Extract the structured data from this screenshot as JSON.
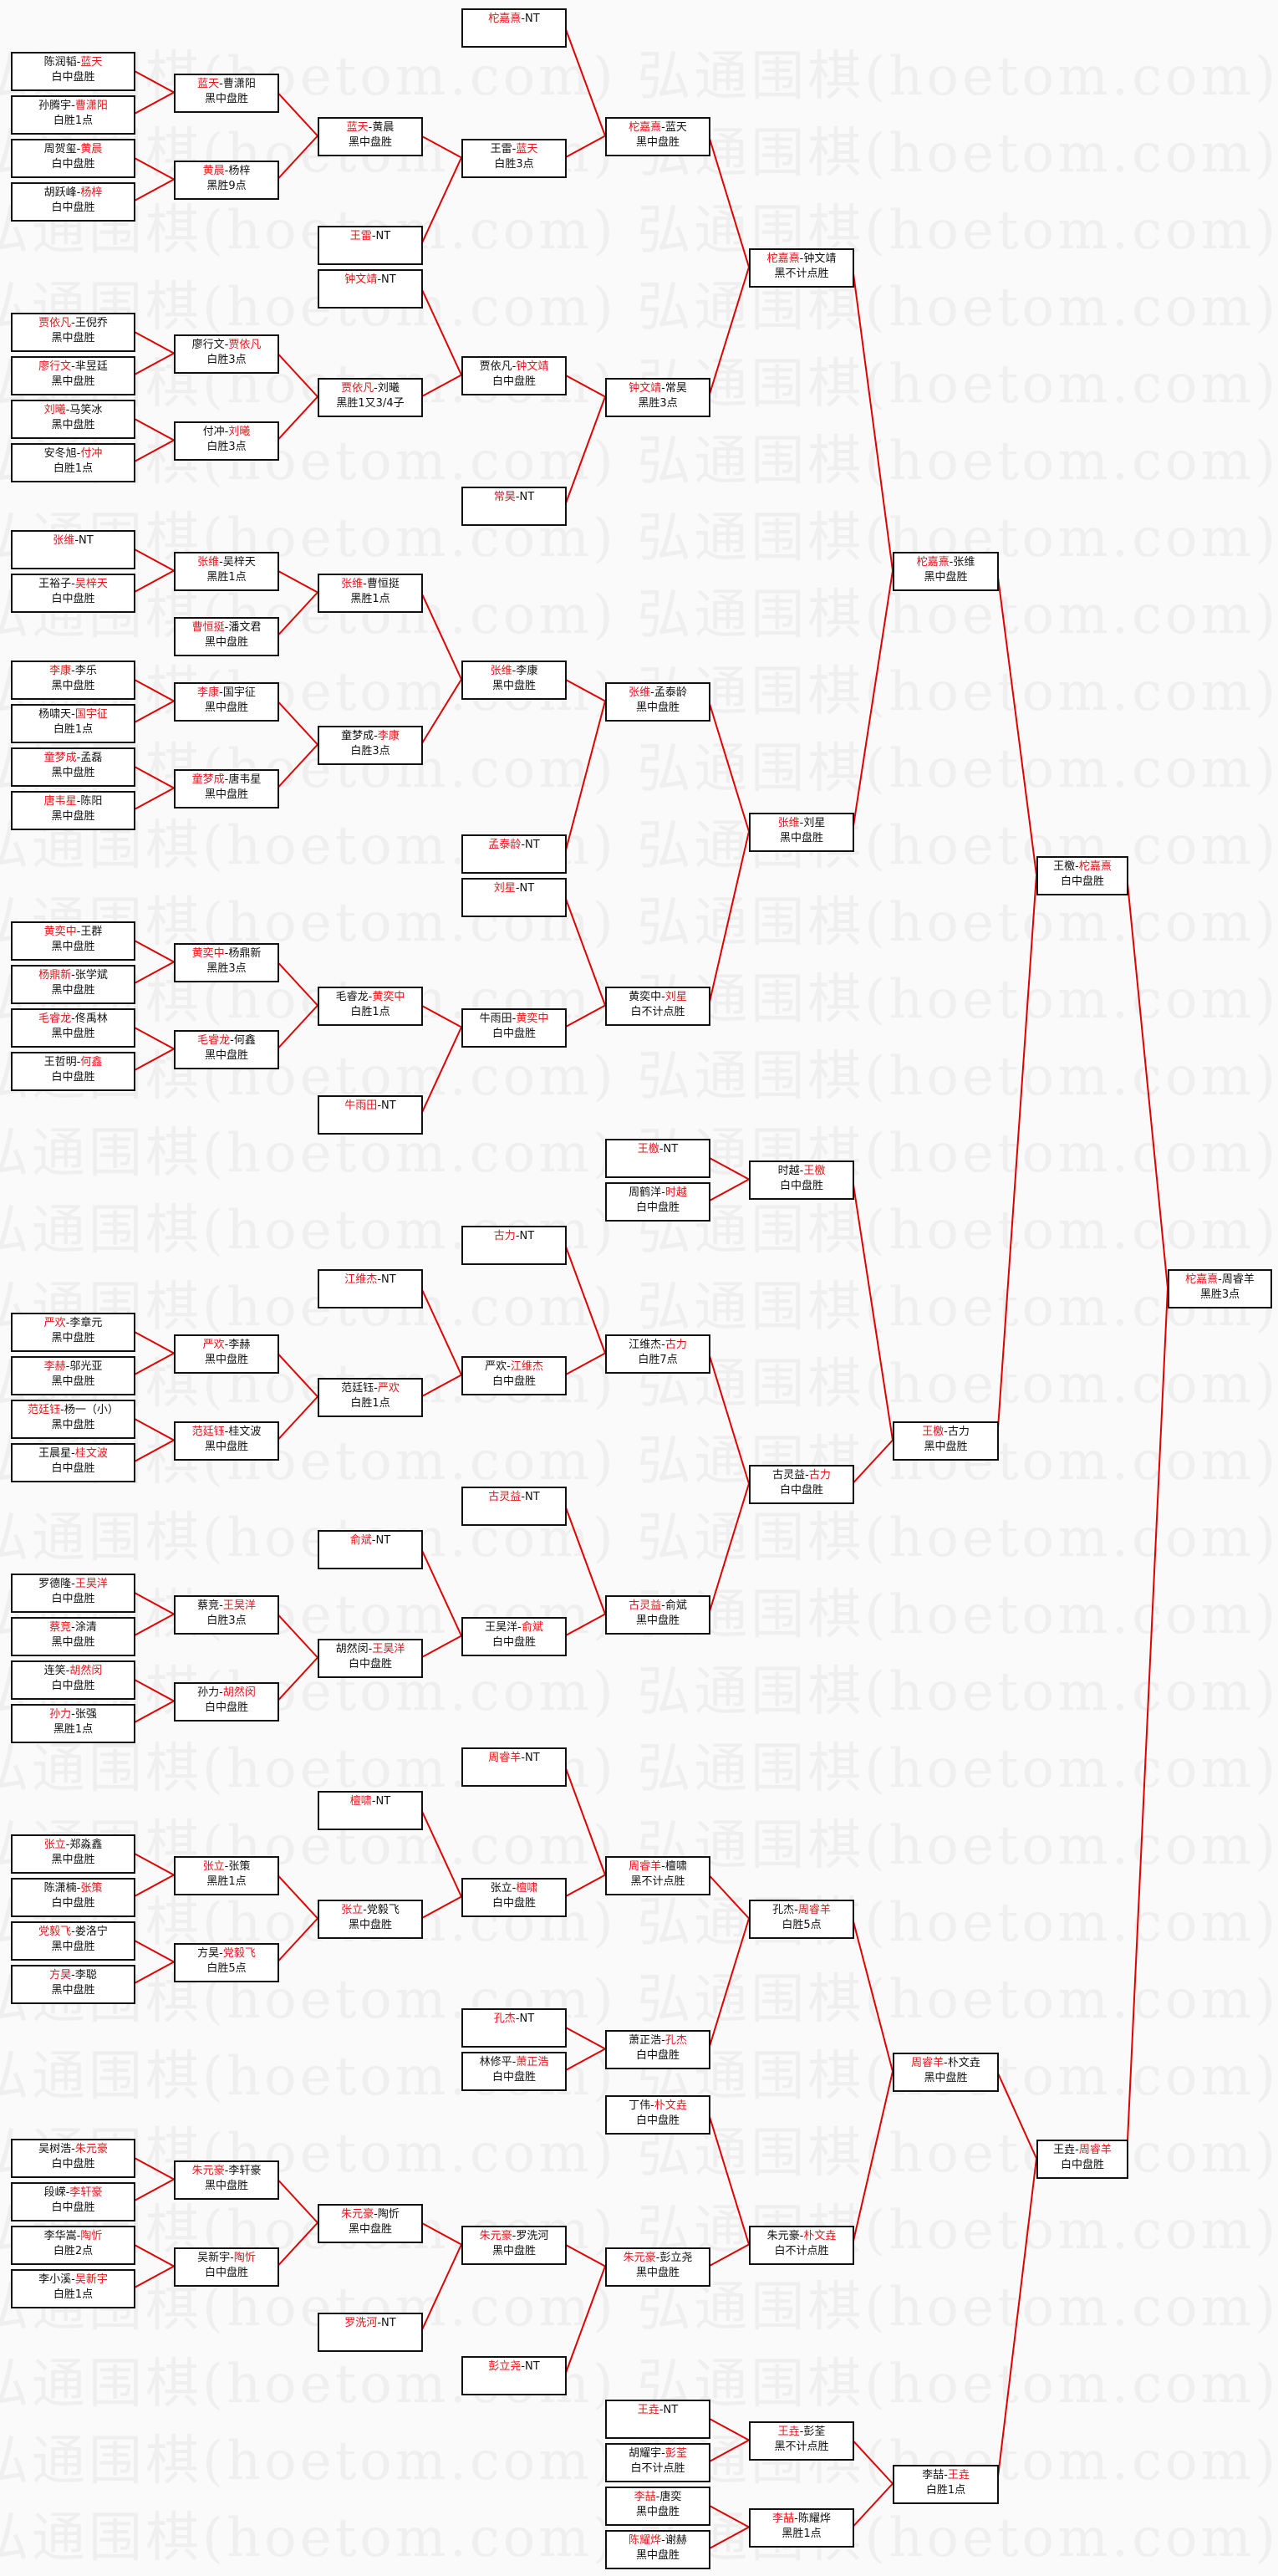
{
  "watermark": "弘通围棋(hoetom.com)",
  "colors": {
    "winner": "#e8141c",
    "connector": "#e00000",
    "box_border": "#111111",
    "watermark": "#efefef"
  },
  "bye_label": "NT",
  "rounds": [
    [
      {
        "a": "陈润韬",
        "b": "蓝天",
        "w": 2,
        "r": "白中盘胜"
      },
      {
        "a": "孙腾宇",
        "b": "曹潇阳",
        "w": 2,
        "r": "白胜1点"
      },
      {
        "a": "周贺玺",
        "b": "黄晨",
        "w": 2,
        "r": "白中盘胜"
      },
      {
        "a": "胡跃峰",
        "b": "杨梓",
        "w": 2,
        "r": "白中盘胜"
      },
      {
        "a": "贾依凡",
        "b": "王倪乔",
        "w": 1,
        "r": "黑中盘胜"
      },
      {
        "a": "廖行文",
        "b": "芈昱廷",
        "w": 1,
        "r": "黑中盘胜"
      },
      {
        "a": "刘曦",
        "b": "马笑冰",
        "w": 1,
        "r": "黑中盘胜"
      },
      {
        "a": "安冬旭",
        "b": "付冲",
        "w": 2,
        "r": "白胜1点"
      },
      {
        "a": "张维",
        "b": "NT",
        "w": 1,
        "r": ""
      },
      {
        "a": "王裕子",
        "b": "吴梓天",
        "w": 2,
        "r": "白中盘胜"
      },
      {
        "a": "李康",
        "b": "李乐",
        "w": 1,
        "r": "黑中盘胜"
      },
      {
        "a": "杨啸天",
        "b": "国宇征",
        "w": 2,
        "r": "白胜1点"
      },
      {
        "a": "童梦成",
        "b": "孟磊",
        "w": 1,
        "r": "黑中盘胜"
      },
      {
        "a": "唐韦星",
        "b": "陈阳",
        "w": 1,
        "r": "黑中盘胜"
      },
      {
        "a": "黄奕中",
        "b": "王群",
        "w": 1,
        "r": "黑中盘胜"
      },
      {
        "a": "杨鼎新",
        "b": "张学斌",
        "w": 1,
        "r": "黑中盘胜"
      },
      {
        "a": "毛睿龙",
        "b": "佟禹林",
        "w": 1,
        "r": "黑中盘胜"
      },
      {
        "a": "王哲明",
        "b": "何鑫",
        "w": 2,
        "r": "白中盘胜"
      },
      {
        "a": "严欢",
        "b": "李章元",
        "w": 1,
        "r": "黑中盘胜"
      },
      {
        "a": "李赫",
        "b": "邬光亚",
        "w": 1,
        "r": "黑中盘胜"
      },
      {
        "a": "范廷钰",
        "b": "杨一（小）",
        "w": 1,
        "r": "黑中盘胜"
      },
      {
        "a": "王晨星",
        "b": "桂文波",
        "w": 2,
        "r": "白中盘胜"
      },
      {
        "a": "罗德隆",
        "b": "王昊洋",
        "w": 2,
        "r": "白中盘胜"
      },
      {
        "a": "蔡竞",
        "b": "涂清",
        "w": 1,
        "r": "黑中盘胜"
      },
      {
        "a": "连笑",
        "b": "胡然闵",
        "w": 2,
        "r": "白中盘胜"
      },
      {
        "a": "孙力",
        "b": "张强",
        "w": 1,
        "r": "黑胜1点"
      },
      {
        "a": "张立",
        "b": "郑淼鑫",
        "w": 1,
        "r": "黑中盘胜"
      },
      {
        "a": "陈潇楠",
        "b": "张策",
        "w": 2,
        "r": "白中盘胜"
      },
      {
        "a": "党毅飞",
        "b": "娄洛宁",
        "w": 1,
        "r": "黑中盘胜"
      },
      {
        "a": "方昊",
        "b": "李聪",
        "w": 1,
        "r": "黑中盘胜"
      },
      {
        "a": "吴树浩",
        "b": "朱元豪",
        "w": 2,
        "r": "白中盘胜"
      },
      {
        "a": "段嵘",
        "b": "李轩豪",
        "w": 2,
        "r": "白中盘胜"
      },
      {
        "a": "李华嵩",
        "b": "陶忻",
        "w": 2,
        "r": "白胜2点"
      },
      {
        "a": "李小溪",
        "b": "吴新宇",
        "w": 2,
        "r": "白胜1点"
      }
    ],
    [
      {
        "a": "蓝天",
        "b": "曹潇阳",
        "w": 1,
        "r": "黑中盘胜"
      },
      {
        "a": "黄晨",
        "b": "杨梓",
        "w": 1,
        "r": "黑胜9点"
      },
      {
        "a": "廖行文",
        "b": "贾依凡",
        "w": 2,
        "r": "白胜3点"
      },
      {
        "a": "付冲",
        "b": "刘曦",
        "w": 2,
        "r": "白胜3点"
      },
      {
        "a": "张维",
        "b": "吴梓天",
        "w": 1,
        "r": "黑胜1点"
      },
      {
        "a": "曹恒挺",
        "b": "潘文君",
        "w": 1,
        "r": "黑中盘胜"
      },
      {
        "a": "李康",
        "b": "国宇征",
        "w": 1,
        "r": "黑中盘胜"
      },
      {
        "a": "童梦成",
        "b": "唐韦星",
        "w": 1,
        "r": "黑中盘胜"
      },
      {
        "a": "黄奕中",
        "b": "杨鼎新",
        "w": 1,
        "r": "黑胜3点"
      },
      {
        "a": "毛睿龙",
        "b": "何鑫",
        "w": 1,
        "r": "黑中盘胜"
      },
      {
        "a": "严欢",
        "b": "李赫",
        "w": 1,
        "r": "黑中盘胜"
      },
      {
        "a": "范廷钰",
        "b": "桂文波",
        "w": 1,
        "r": "黑中盘胜"
      },
      {
        "a": "蔡竞",
        "b": "王昊洋",
        "w": 2,
        "r": "白胜3点"
      },
      {
        "a": "孙力",
        "b": "胡然闵",
        "w": 2,
        "r": "白中盘胜"
      },
      {
        "a": "张立",
        "b": "张策",
        "w": 1,
        "r": "黑胜1点"
      },
      {
        "a": "方昊",
        "b": "党毅飞",
        "w": 2,
        "r": "白胜5点"
      },
      {
        "a": "朱元豪",
        "b": "李轩豪",
        "w": 1,
        "r": "黑中盘胜"
      },
      {
        "a": "吴新宇",
        "b": "陶忻",
        "w": 2,
        "r": "白中盘胜"
      }
    ],
    [
      {
        "a": "蓝天",
        "b": "黄晨",
        "w": 1,
        "r": "黑中盘胜"
      },
      {
        "a": "王雷",
        "b": "NT",
        "w": 1,
        "r": ""
      },
      {
        "a": "钟文靖",
        "b": "NT",
        "w": 1,
        "r": ""
      },
      {
        "a": "贾依凡",
        "b": "刘曦",
        "w": 1,
        "r": "黑胜1又3/4子"
      },
      {
        "a": "张维",
        "b": "曹恒挺",
        "w": 1,
        "r": "黑胜1点"
      },
      {
        "a": "童梦成",
        "b": "李康",
        "w": 2,
        "r": "白胜3点"
      },
      {
        "a": "毛睿龙",
        "b": "黄奕中",
        "w": 2,
        "r": "白胜1点"
      },
      {
        "a": "牛雨田",
        "b": "NT",
        "w": 1,
        "r": ""
      },
      {
        "a": "江维杰",
        "b": "NT",
        "w": 1,
        "r": ""
      },
      {
        "a": "范廷钰",
        "b": "严欢",
        "w": 2,
        "r": "白胜1点"
      },
      {
        "a": "俞斌",
        "b": "NT",
        "w": 1,
        "r": ""
      },
      {
        "a": "胡然闵",
        "b": "王昊洋",
        "w": 2,
        "r": "白中盘胜"
      },
      {
        "a": "檀啸",
        "b": "NT",
        "w": 1,
        "r": ""
      },
      {
        "a": "张立",
        "b": "党毅飞",
        "w": 1,
        "r": "黑中盘胜"
      },
      {
        "a": "朱元豪",
        "b": "陶忻",
        "w": 1,
        "r": "黑中盘胜"
      },
      {
        "a": "罗洗河",
        "b": "NT",
        "w": 1,
        "r": ""
      }
    ],
    [
      {
        "a": "柁嘉熹",
        "b": "NT",
        "w": 1,
        "r": ""
      },
      {
        "a": "王雷",
        "b": "蓝天",
        "w": 2,
        "r": "白胜3点"
      },
      {
        "a": "贾依凡",
        "b": "钟文靖",
        "w": 2,
        "r": "白中盘胜"
      },
      {
        "a": "常昊",
        "b": "NT",
        "w": 1,
        "r": ""
      },
      {
        "a": "张维",
        "b": "李康",
        "w": 1,
        "r": "黑中盘胜"
      },
      {
        "a": "孟泰龄",
        "b": "NT",
        "w": 1,
        "r": ""
      },
      {
        "a": "刘星",
        "b": "NT",
        "w": 1,
        "r": ""
      },
      {
        "a": "牛雨田",
        "b": "黄奕中",
        "w": 2,
        "r": "白中盘胜"
      },
      {
        "a": "古力",
        "b": "NT",
        "w": 1,
        "r": ""
      },
      {
        "a": "严欢",
        "b": "江维杰",
        "w": 2,
        "r": "白中盘胜"
      },
      {
        "a": "古灵益",
        "b": "NT",
        "w": 1,
        "r": ""
      },
      {
        "a": "王昊洋",
        "b": "俞斌",
        "w": 2,
        "r": "白中盘胜"
      },
      {
        "a": "周睿羊",
        "b": "NT",
        "w": 1,
        "r": ""
      },
      {
        "a": "张立",
        "b": "檀啸",
        "w": 2,
        "r": "白中盘胜"
      },
      {
        "a": "孔杰",
        "b": "NT",
        "w": 1,
        "r": ""
      },
      {
        "a": "林修平",
        "b": "萧正浩",
        "w": 2,
        "r": "白中盘胜"
      },
      {
        "a": "朱元豪",
        "b": "罗洗河",
        "w": 1,
        "r": "黑中盘胜"
      },
      {
        "a": "彭立尧",
        "b": "NT",
        "w": 1,
        "r": ""
      }
    ],
    [
      {
        "a": "柁嘉熹",
        "b": "蓝天",
        "w": 1,
        "r": "黑中盘胜"
      },
      {
        "a": "钟文靖",
        "b": "常昊",
        "w": 1,
        "r": "黑胜3点"
      },
      {
        "a": "张维",
        "b": "孟泰龄",
        "w": 1,
        "r": "黑中盘胜"
      },
      {
        "a": "黄奕中",
        "b": "刘星",
        "w": 2,
        "r": "白不计点胜"
      },
      {
        "a": "王檄",
        "b": "NT",
        "w": 1,
        "r": ""
      },
      {
        "a": "周鹤洋",
        "b": "时越",
        "w": 2,
        "r": "白中盘胜"
      },
      {
        "a": "江维杰",
        "b": "古力",
        "w": 2,
        "r": "白胜7点"
      },
      {
        "a": "古灵益",
        "b": "俞斌",
        "w": 1,
        "r": "黑中盘胜"
      },
      {
        "a": "周睿羊",
        "b": "檀啸",
        "w": 1,
        "r": "黑不计点胜"
      },
      {
        "a": "萧正浩",
        "b": "孔杰",
        "w": 2,
        "r": "白中盘胜"
      },
      {
        "a": "丁伟",
        "b": "朴文垚",
        "w": 2,
        "r": "白中盘胜"
      },
      {
        "a": "朱元豪",
        "b": "彭立尧",
        "w": 1,
        "r": "黑中盘胜"
      },
      {
        "a": "王垚",
        "b": "NT",
        "w": 1,
        "r": ""
      },
      {
        "a": "胡耀宇",
        "b": "彭荃",
        "w": 2,
        "r": "白不计点胜"
      },
      {
        "a": "李喆",
        "b": "唐奕",
        "w": 1,
        "r": "黑中盘胜"
      },
      {
        "a": "陈耀烨",
        "b": "谢赫",
        "w": 1,
        "r": "黑中盘胜"
      }
    ],
    [
      {
        "a": "柁嘉熹",
        "b": "钟文靖",
        "w": 1,
        "r": "黑不计点胜"
      },
      {
        "a": "张维",
        "b": "刘星",
        "w": 1,
        "r": "黑中盘胜"
      },
      {
        "a": "时越",
        "b": "王檄",
        "w": 2,
        "r": "白中盘胜"
      },
      {
        "a": "古灵益",
        "b": "古力",
        "w": 2,
        "r": "白中盘胜"
      },
      {
        "a": "孔杰",
        "b": "周睿羊",
        "w": 2,
        "r": "白胜5点"
      },
      {
        "a": "朱元豪",
        "b": "朴文垚",
        "w": 2,
        "r": "白不计点胜"
      },
      {
        "a": "王垚",
        "b": "彭荃",
        "w": 1,
        "r": "黑不计点胜"
      },
      {
        "a": "李喆",
        "b": "陈耀烨",
        "w": 1,
        "r": "黑胜1点"
      }
    ],
    [
      {
        "a": "柁嘉熹",
        "b": "张维",
        "w": 1,
        "r": "黑中盘胜"
      },
      {
        "a": "王檄",
        "b": "古力",
        "w": 1,
        "r": "黑中盘胜"
      },
      {
        "a": "周睿羊",
        "b": "朴文垚",
        "w": 1,
        "r": "黑中盘胜"
      },
      {
        "a": "李喆",
        "b": "王垚",
        "w": 2,
        "r": "白胜1点"
      }
    ],
    [
      {
        "a": "王檄",
        "b": "柁嘉熹",
        "w": 2,
        "r": "白中盘胜"
      },
      {
        "a": "王垚",
        "b": "周睿羊",
        "w": 2,
        "r": "白中盘胜"
      }
    ],
    [
      {
        "a": "柁嘉熹",
        "b": "周睿羊",
        "w": 1,
        "r": "黑胜3点"
      }
    ]
  ]
}
